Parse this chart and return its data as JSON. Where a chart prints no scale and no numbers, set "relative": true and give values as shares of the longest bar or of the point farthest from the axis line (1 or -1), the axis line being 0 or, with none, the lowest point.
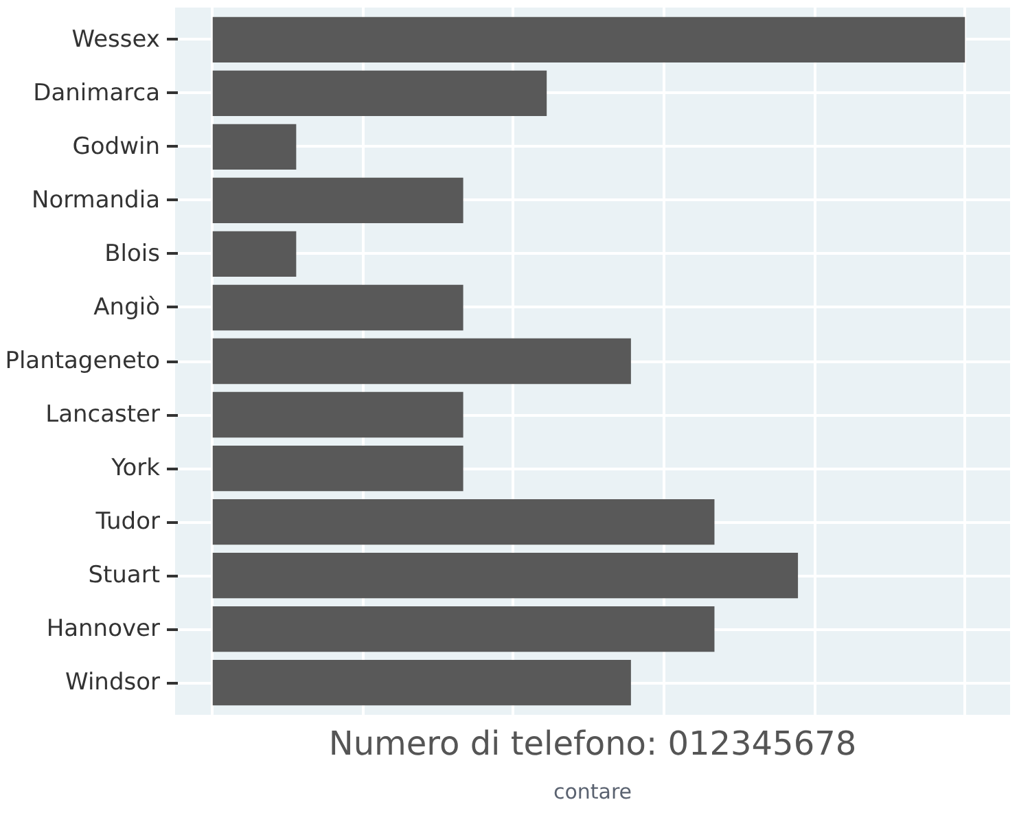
{
  "chart_data": {
    "type": "bar",
    "orientation": "horizontal",
    "xlabel": "contare",
    "relative": true,
    "categories": [
      "Wessex",
      "Danimarca",
      "Godwin",
      "Normandia",
      "Blois",
      "Angiò",
      "Plantageneto",
      "Lancaster",
      "York",
      "Tudor",
      "Stuart",
      "Hannover",
      "Windsor"
    ],
    "values": [
      1,
      0.444,
      0.111,
      0.333,
      0.111,
      0.333,
      0.556,
      0.333,
      0.333,
      0.667,
      0.778,
      0.667,
      0.556
    ],
    "color": "#595959",
    "grid": true,
    "tick_labels": "y",
    "annotations": [
      "Numero di telefono: 012345678"
    ]
  }
}
